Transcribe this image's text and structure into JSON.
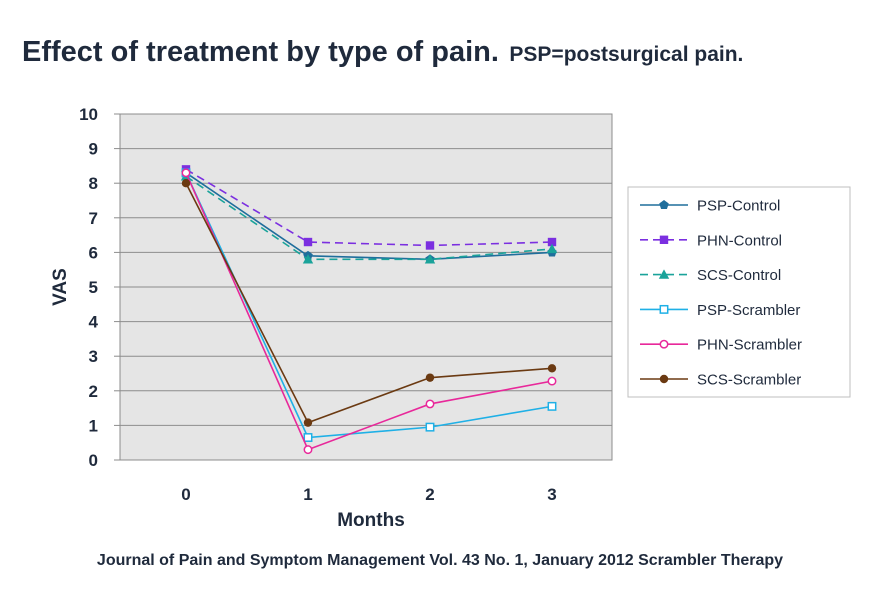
{
  "title": "Effect of treatment by type of pain.",
  "subtitle": "PSP=postsurgical pain.",
  "footer": "Journal of Pain and Symptom Management Vol. 43 No. 1, January 2012 Scrambler Therapy",
  "chart_data": {
    "type": "line",
    "xlabel": "Months",
    "ylabel": "VAS",
    "x": [
      0,
      1,
      2,
      3
    ],
    "ylim": [
      0,
      10
    ],
    "yticks": [
      0,
      1,
      2,
      3,
      4,
      5,
      6,
      7,
      8,
      9,
      10
    ],
    "grid": true,
    "legend_position": "right",
    "background": "#e5e5e5",
    "series": [
      {
        "name": "PSP-Control",
        "values": [
          8.3,
          5.9,
          5.8,
          6.0
        ],
        "color": "#1f6e9c",
        "marker": "pentagon",
        "dash": false
      },
      {
        "name": "PHN-Control",
        "values": [
          8.4,
          6.3,
          6.2,
          6.3
        ],
        "color": "#7b2fe0",
        "marker": "square",
        "dash": true
      },
      {
        "name": "SCS-Control",
        "values": [
          8.2,
          5.8,
          5.8,
          6.1
        ],
        "color": "#1aa39a",
        "marker": "triangle",
        "dash": true
      },
      {
        "name": "PSP-Scrambler",
        "values": [
          8.3,
          0.65,
          0.95,
          1.55
        ],
        "color": "#1fb0e6",
        "marker": "open-square",
        "dash": false
      },
      {
        "name": "PHN-Scrambler",
        "values": [
          8.3,
          0.3,
          1.62,
          2.28
        ],
        "color": "#e8289a",
        "marker": "open-circle",
        "dash": false
      },
      {
        "name": "SCS-Scrambler",
        "values": [
          8.0,
          1.08,
          2.38,
          2.65
        ],
        "color": "#6b3a12",
        "marker": "circle",
        "dash": false
      }
    ]
  }
}
